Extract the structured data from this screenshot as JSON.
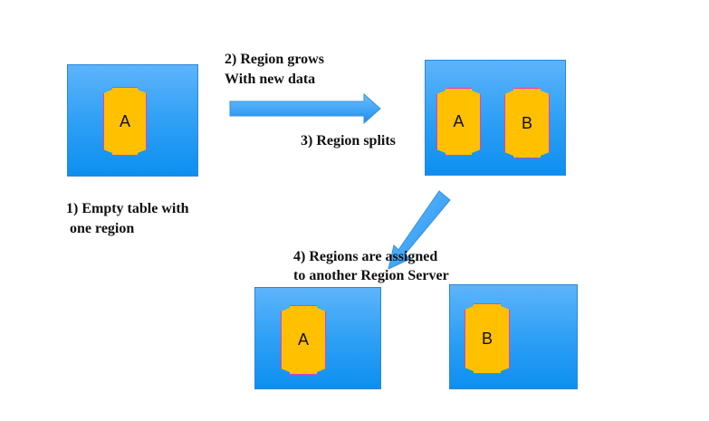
{
  "labels": {
    "step1_line1": "1) Empty table with",
    "step1_line2": " one region",
    "step2_line1": "2) Region grows",
    "step2_line2": "With new data",
    "step3": "3) Region splits",
    "step4_line1": "4) Regions are assigned",
    "step4_line2": "to another Region Server"
  },
  "regions": {
    "initial": "A",
    "split_a": "A",
    "split_b": "B",
    "server1": "A",
    "server2": "B"
  },
  "colors": {
    "table_box": "#2fa0f5",
    "region_fill": "#ffc000",
    "region_border": "#e040c0",
    "arrow": "#2fa0f5"
  }
}
